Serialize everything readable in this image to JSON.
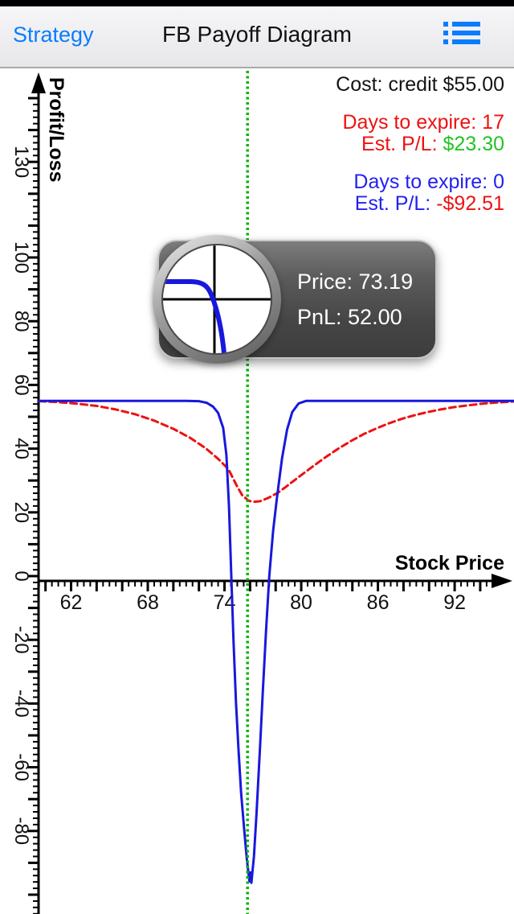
{
  "nav": {
    "back_label": "Strategy",
    "title": "FB Payoff Diagram",
    "accent_color": "#0a7cff"
  },
  "icons": {
    "menu": "list-icon"
  },
  "annotations": {
    "cost": "Cost: credit $55.00",
    "exp17_days": "Days to expire: 17",
    "est_pl_label": "Est. P/L:",
    "exp17_pl_value": "$23.30",
    "exp0_days": "Days to expire: 0",
    "exp0_pl_value": "-$92.51",
    "colors": {
      "red": "#ee1111",
      "green": "#22c422",
      "blue": "#2222ee",
      "black": "#141414"
    }
  },
  "tooltip": {
    "price_text": "Price: 73.19",
    "pnl_text": "PnL: 52.00"
  },
  "chart_data": {
    "type": "line",
    "title": "",
    "xlabel": "Stock Price",
    "ylabel": "Profit/Loss",
    "xlim": [
      59.5,
      96.6
    ],
    "ylim": [
      -106,
      157
    ],
    "grid": false,
    "legend_position": "none",
    "x_axis": {
      "labels": [
        62,
        68,
        74,
        80,
        86,
        92
      ],
      "major": {
        "from": 60,
        "to": 94,
        "step": 2
      },
      "minor": {
        "from": 59.5,
        "to": 95,
        "step": 0.5
      }
    },
    "y_axis": {
      "labels": [
        130,
        100,
        80,
        60,
        40,
        20,
        0,
        -20,
        -40,
        -60,
        -80
      ],
      "major": {
        "from": -100,
        "to": 150,
        "step": 10
      },
      "minor": {
        "from": -106,
        "to": 150,
        "step": 2
      }
    },
    "vline": {
      "x": 75.8,
      "color": "#00b400",
      "style": "dotted",
      "meaning": "current price"
    },
    "series": [
      {
        "name": "Estimated P/L, 17 days to expire",
        "color": "#ee1111",
        "style": "dashed",
        "dash": "8 5",
        "points": [
          [
            59.5,
            54.9
          ],
          [
            61,
            54.6
          ],
          [
            62.5,
            54.1
          ],
          [
            64,
            53.4
          ],
          [
            65.5,
            52.3
          ],
          [
            67,
            50.8
          ],
          [
            68.5,
            48.8
          ],
          [
            70,
            46.2
          ],
          [
            71.3,
            43.4
          ],
          [
            72.5,
            40.2
          ],
          [
            73.5,
            36.8
          ],
          [
            74.3,
            33.6
          ],
          [
            75.0,
            28.0
          ],
          [
            75.4,
            25.3
          ],
          [
            75.9,
            23.6
          ],
          [
            76.3,
            23.3
          ],
          [
            76.8,
            23.5
          ],
          [
            77.4,
            24.5
          ],
          [
            78.2,
            26.2
          ],
          [
            79.0,
            28.6
          ],
          [
            79.9,
            31.4
          ],
          [
            80.9,
            34.4
          ],
          [
            81.9,
            37.3
          ],
          [
            82.9,
            40.0
          ],
          [
            83.9,
            42.4
          ],
          [
            84.9,
            44.6
          ],
          [
            85.9,
            46.4
          ],
          [
            86.9,
            48.0
          ],
          [
            87.9,
            49.4
          ],
          [
            88.9,
            50.5
          ],
          [
            89.9,
            51.5
          ],
          [
            90.9,
            52.3
          ],
          [
            91.9,
            53.0
          ],
          [
            92.9,
            53.5
          ],
          [
            93.9,
            54.0
          ],
          [
            95.0,
            54.4
          ],
          [
            96.6,
            54.8
          ]
        ]
      },
      {
        "name": "P/L at expiration, 0 days",
        "color": "#1818dd",
        "style": "solid",
        "dash": null,
        "points": [
          [
            59.5,
            55
          ],
          [
            71.0,
            55
          ],
          [
            72.0,
            54.9
          ],
          [
            72.6,
            54.4
          ],
          [
            73.1,
            53.2
          ],
          [
            73.5,
            51.2
          ],
          [
            73.9,
            46.5
          ],
          [
            74.15,
            38
          ],
          [
            74.35,
            22
          ],
          [
            74.53,
            0
          ],
          [
            74.7,
            -20
          ],
          [
            74.9,
            -40
          ],
          [
            75.1,
            -55
          ],
          [
            75.3,
            -68
          ],
          [
            75.55,
            -80
          ],
          [
            75.75,
            -89
          ],
          [
            75.95,
            -95.8
          ],
          [
            76.03,
            -93
          ],
          [
            76.1,
            -96.3
          ],
          [
            76.3,
            -88
          ],
          [
            76.5,
            -75
          ],
          [
            76.75,
            -56
          ],
          [
            77.0,
            -36
          ],
          [
            77.25,
            -17
          ],
          [
            77.5,
            0
          ],
          [
            77.8,
            14
          ],
          [
            78.1,
            24.5
          ],
          [
            78.5,
            37
          ],
          [
            78.9,
            46
          ],
          [
            79.3,
            51.5
          ],
          [
            79.8,
            54.2
          ],
          [
            80.4,
            55
          ],
          [
            96.6,
            55
          ]
        ]
      }
    ],
    "key_values": {
      "cost_credit": 55.0,
      "est_pl_17_days": 23.3,
      "est_pl_0_days": -92.51,
      "tooltip_price": 73.19,
      "tooltip_pnl": 52.0
    }
  }
}
